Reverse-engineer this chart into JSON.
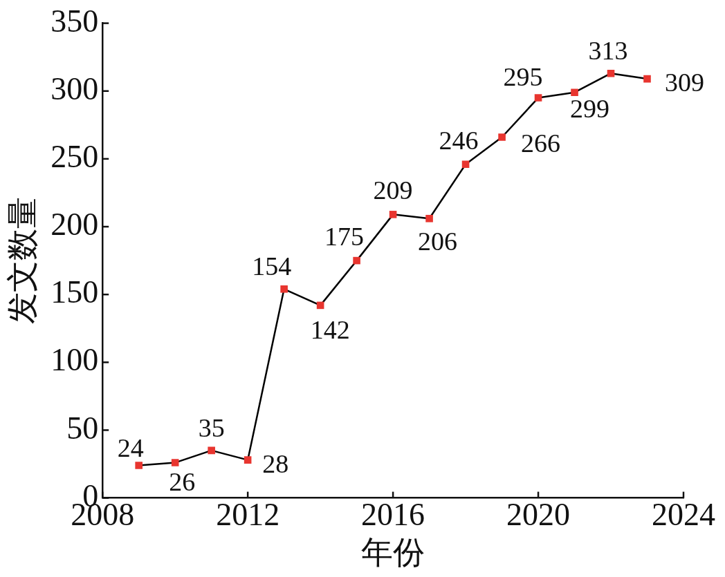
{
  "chart_data": {
    "type": "line",
    "xlabel": "年份",
    "ylabel": "发文数量",
    "x": [
      2009,
      2010,
      2011,
      2012,
      2013,
      2014,
      2015,
      2016,
      2017,
      2018,
      2019,
      2020,
      2021,
      2022,
      2023
    ],
    "series": [
      {
        "color": "#e8352f",
        "values": [
          24,
          26,
          35,
          28,
          154,
          142,
          175,
          209,
          206,
          246,
          266,
          295,
          299,
          313,
          309
        ]
      }
    ],
    "xlim": [
      2008,
      2024
    ],
    "xticks": [
      2008,
      2012,
      2016,
      2020,
      2024
    ],
    "ylim": [
      0,
      350
    ],
    "yticks": [
      0,
      50,
      100,
      150,
      200,
      250,
      300,
      350
    ],
    "grid": false,
    "legend": false,
    "marker": "square",
    "line_style": "solid",
    "data_labels": true
  }
}
